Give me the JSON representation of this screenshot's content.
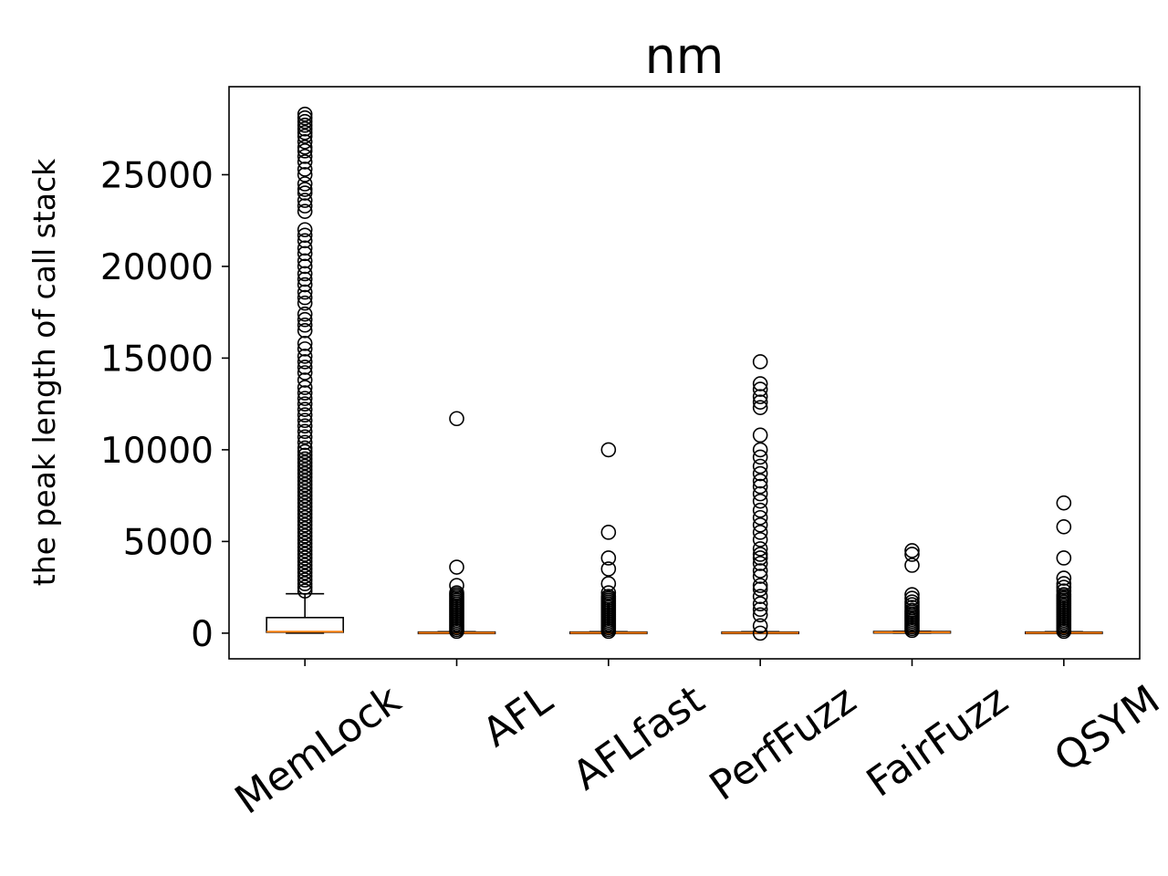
{
  "chart_data": {
    "type": "box",
    "title": "nm",
    "xlabel": "",
    "ylabel": "the peak length of call stack",
    "ylim": [
      -1400,
      29800
    ],
    "yticks": [
      0,
      5000,
      10000,
      15000,
      20000,
      25000
    ],
    "ytick_labels": [
      "0",
      "5000",
      "10000",
      "15000",
      "20000",
      "25000"
    ],
    "categories": [
      "MemLock",
      "AFL",
      "AFLfast",
      "PerfFuzz",
      "FairFuzz",
      "QSYM"
    ],
    "grid": false,
    "colors": {
      "box": "#000000",
      "median": "#ff7f0e",
      "flier": "#000000"
    },
    "boxes": [
      {
        "label": "MemLock",
        "whislo": 0,
        "q1": 50,
        "med": 80,
        "q3": 850,
        "whishi": 2150,
        "fliers": [
          2300,
          2500,
          2700,
          2900,
          3100,
          3300,
          3500,
          3700,
          3900,
          4100,
          4300,
          4500,
          4700,
          4900,
          5100,
          5300,
          5500,
          5700,
          5900,
          6100,
          6300,
          6500,
          6700,
          6900,
          7100,
          7300,
          7500,
          7700,
          7900,
          8100,
          8300,
          8500,
          8700,
          8900,
          9100,
          9300,
          9500,
          9700,
          9900,
          10100,
          10400,
          10700,
          11000,
          11300,
          11600,
          11900,
          12200,
          12500,
          12800,
          13100,
          13400,
          13800,
          14200,
          14500,
          14800,
          15100,
          15500,
          15800,
          16500,
          16800,
          17100,
          17400,
          18000,
          18300,
          18600,
          19000,
          19300,
          19600,
          20000,
          20300,
          20700,
          21000,
          21400,
          21700,
          22000,
          23000,
          23300,
          23600,
          24000,
          24200,
          24500,
          25000,
          25300,
          25700,
          26000,
          26300,
          26500,
          26800,
          27100,
          27300,
          27500,
          27700,
          27900,
          28100,
          28300
        ]
      },
      {
        "label": "AFL",
        "whislo": 0,
        "q1": 0,
        "med": 20,
        "q3": 40,
        "whishi": 80,
        "fliers": [
          100,
          200,
          300,
          400,
          500,
          600,
          700,
          800,
          900,
          1000,
          1100,
          1200,
          1300,
          1400,
          1500,
          1600,
          1700,
          1800,
          1900,
          2000,
          2100,
          2200,
          2600,
          3600,
          11700
        ]
      },
      {
        "label": "AFLfast",
        "whislo": 0,
        "q1": 0,
        "med": 20,
        "q3": 40,
        "whishi": 80,
        "fliers": [
          100,
          200,
          300,
          400,
          500,
          600,
          700,
          800,
          900,
          1000,
          1100,
          1200,
          1300,
          1400,
          1500,
          1600,
          1700,
          1800,
          1900,
          2000,
          2200,
          2700,
          3500,
          4100,
          5500,
          10000
        ]
      },
      {
        "label": "PerfFuzz",
        "whislo": 0,
        "q1": 0,
        "med": 20,
        "q3": 40,
        "whishi": 80,
        "fliers": [
          0,
          400,
          1000,
          1300,
          1600,
          2000,
          2400,
          2600,
          3100,
          3400,
          3800,
          4100,
          4300,
          4600,
          5100,
          5500,
          5900,
          6300,
          6700,
          7200,
          7600,
          8000,
          8300,
          8700,
          9100,
          9600,
          10000,
          10800,
          12300,
          12600,
          12900,
          13300,
          13600,
          14800
        ]
      },
      {
        "label": "FairFuzz",
        "whislo": 0,
        "q1": 30,
        "med": 50,
        "q3": 70,
        "whishi": 100,
        "fliers": [
          150,
          250,
          350,
          450,
          550,
          650,
          750,
          850,
          950,
          1050,
          1150,
          1250,
          1400,
          1550,
          1700,
          1900,
          2100,
          3700,
          4300,
          4500
        ]
      },
      {
        "label": "QSYM",
        "whislo": 0,
        "q1": 0,
        "med": 20,
        "q3": 40,
        "whishi": 80,
        "fliers": [
          100,
          200,
          300,
          400,
          500,
          600,
          700,
          800,
          900,
          1000,
          1100,
          1200,
          1300,
          1400,
          1500,
          1600,
          1700,
          1800,
          1900,
          2000,
          2100,
          2300,
          2500,
          2700,
          3000,
          4100,
          5800,
          7100
        ]
      }
    ]
  }
}
